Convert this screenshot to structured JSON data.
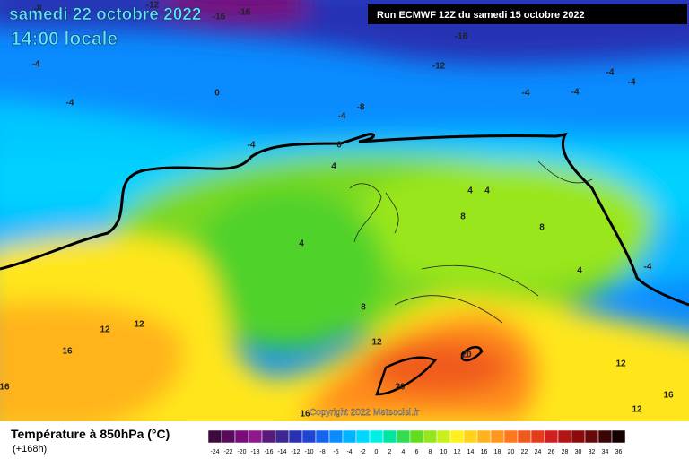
{
  "header": {
    "date": "samedi 22 octobre 2022",
    "time": "14:00 locale",
    "run": "Run ECMWF 12Z du samedi 15 octobre 2022"
  },
  "map": {
    "copyright": "Copyright 2022 Meteociel.fr",
    "contour_labels": [
      -8,
      -12,
      -16,
      -16,
      -16,
      -12,
      -4,
      -4,
      0,
      -8,
      -4,
      -4,
      0,
      4,
      -4,
      -4,
      -4,
      -4,
      4,
      4,
      8,
      8,
      4,
      4,
      -4,
      8,
      12,
      12,
      12,
      16,
      16,
      20,
      20,
      12,
      16,
      12,
      16
    ]
  },
  "legend": {
    "title": "Température à 850hPa (°C)",
    "lead": "(+168h)",
    "labels": [
      -24,
      -22,
      -20,
      -18,
      -16,
      -14,
      -12,
      -10,
      -8,
      -6,
      -4,
      -2,
      0,
      2,
      4,
      6,
      8,
      10,
      12,
      14,
      16,
      18,
      20,
      22,
      24,
      26,
      28,
      30,
      32,
      34,
      36
    ],
    "colors": [
      "#3c0a3c",
      "#5a0a5a",
      "#780c78",
      "#8c1a8c",
      "#5a1a78",
      "#3c2890",
      "#2830b4",
      "#1e46d2",
      "#1464f0",
      "#0a8cff",
      "#00b4ff",
      "#00d7ff",
      "#00f0e6",
      "#00e6a0",
      "#32dc50",
      "#64dc1e",
      "#96e61e",
      "#c8f01e",
      "#fff01e",
      "#ffd21e",
      "#ffb41e",
      "#ff961e",
      "#ff781e",
      "#f05a1e",
      "#e63c1e",
      "#d21e1e",
      "#b41414",
      "#8c0a0a",
      "#640a0a",
      "#3c0505",
      "#140000"
    ]
  }
}
